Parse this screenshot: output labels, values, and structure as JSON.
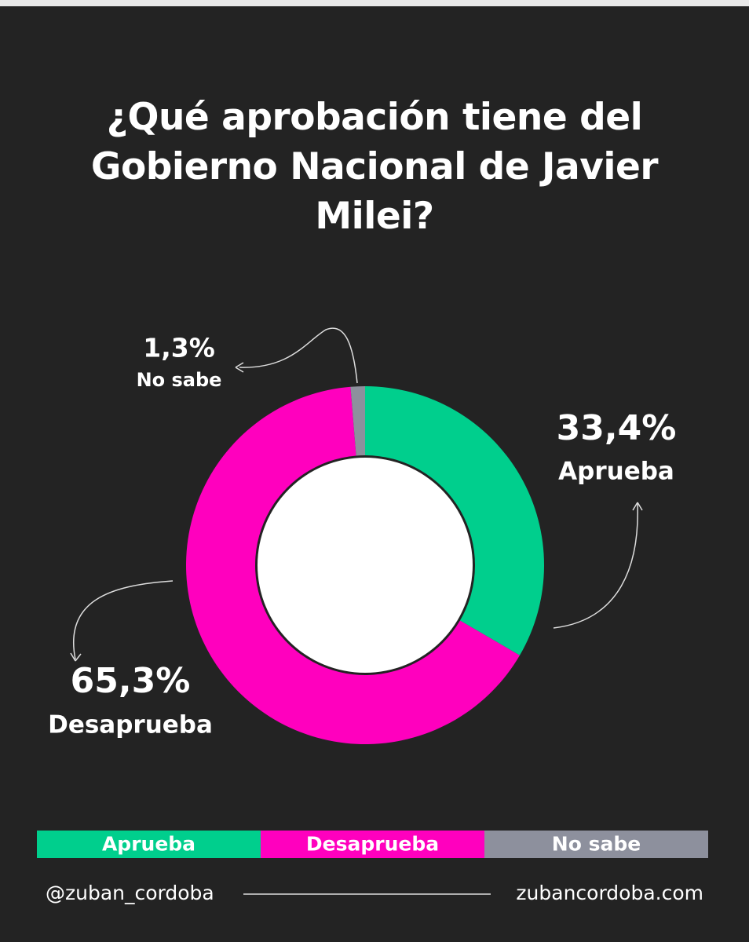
{
  "chart_data": {
    "type": "pie",
    "donut": true,
    "title": "¿Qué aprobación tiene del Gobierno Nacional de Javier Milei?",
    "categories": [
      "Aprueba",
      "Desaprueba",
      "No sabe"
    ],
    "values": [
      33.4,
      65.3,
      1.3
    ],
    "value_labels": [
      "33,4%",
      "65,3%",
      "1,3%"
    ],
    "colors": [
      "#00cf8d",
      "#ff00be",
      "#8d909d"
    ]
  },
  "footer": {
    "handle": "@zuban_cordoba",
    "website": "zubancordoba.com"
  }
}
